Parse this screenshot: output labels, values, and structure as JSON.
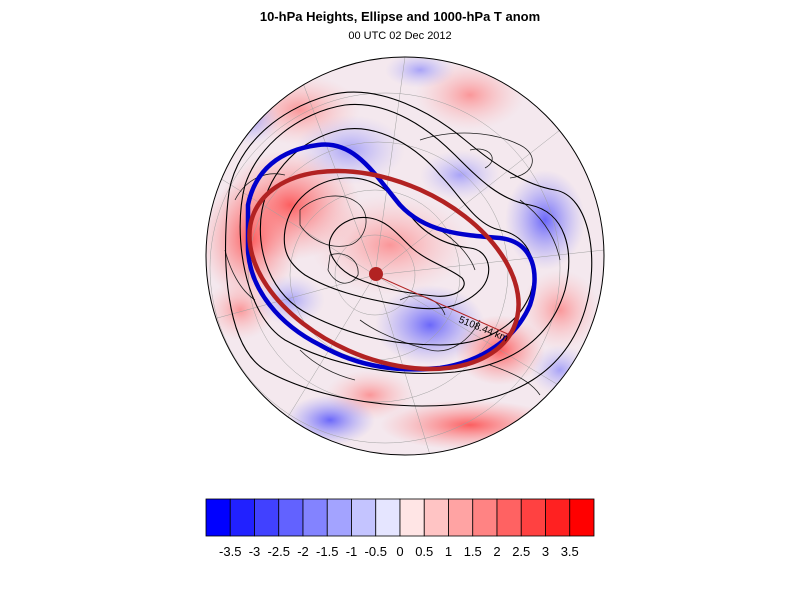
{
  "title": "10-hPa Heights, Ellipse and 1000-hPa T anom",
  "subtitle": "00 UTC 02 Dec 2012",
  "map": {
    "projection": "polar stereographic, north pole",
    "field": "1000-hPa temperature anomaly",
    "ellipse_color": "#b22222",
    "vortex_edge_color": "#0000cc",
    "contour_color": "#000000",
    "distance_label": "5108.44 km"
  },
  "colorbar": {
    "min_color": "#0000ff",
    "max_color": "#ff0000",
    "mid_color": "#ffffff",
    "ticks": [
      "-3.5",
      "-3",
      "-2.5",
      "-2",
      "-1.5",
      "-1",
      "-0.5",
      "0",
      "0.5",
      "1",
      "1.5",
      "2",
      "2.5",
      "3",
      "3.5"
    ]
  }
}
